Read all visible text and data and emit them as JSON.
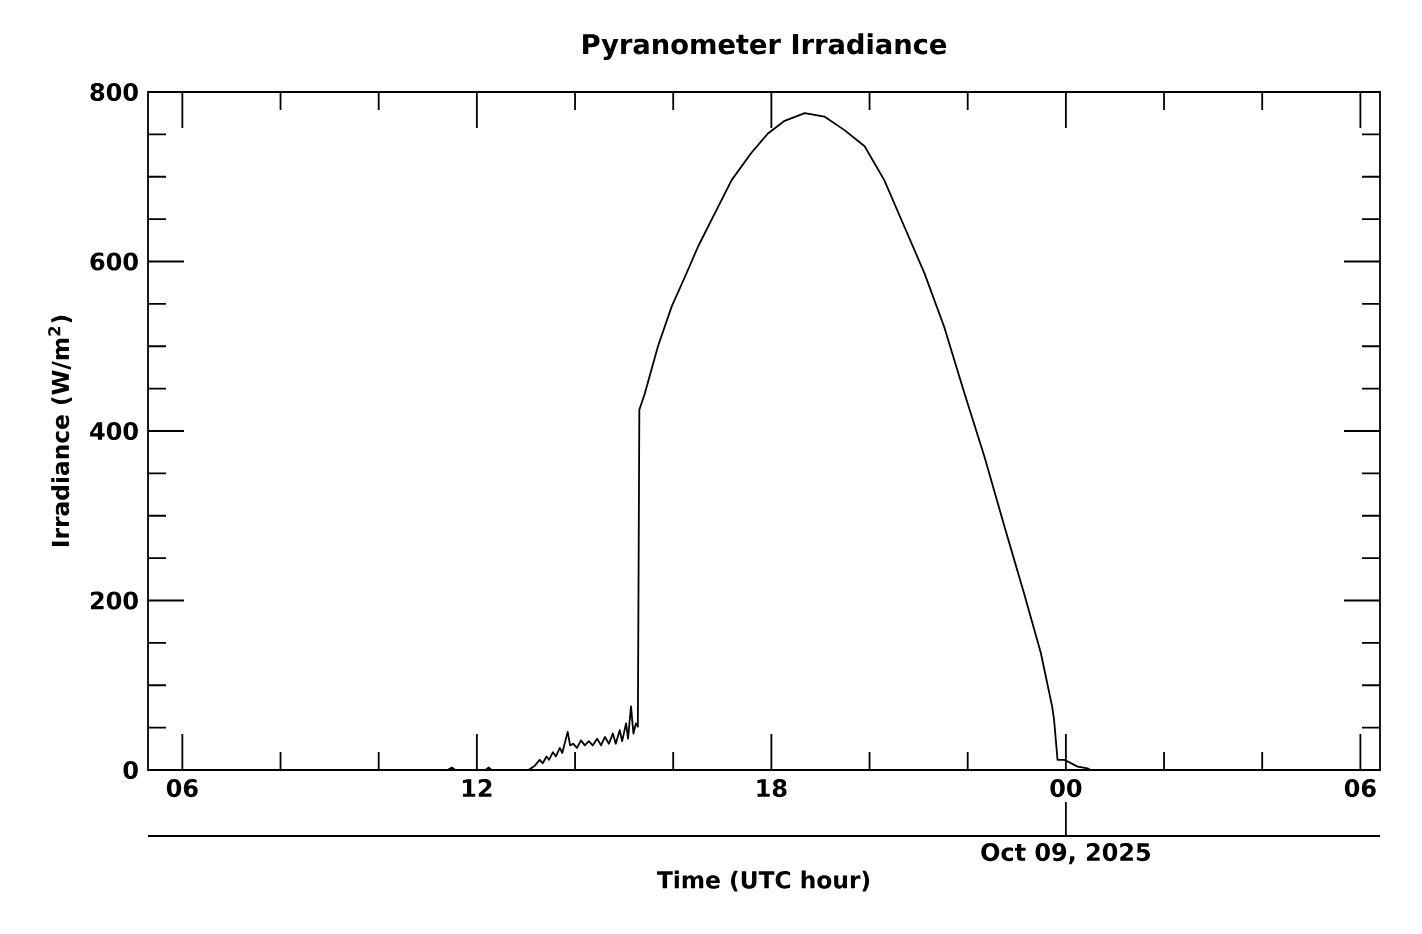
{
  "chart_data": {
    "type": "line",
    "title": "Pyranometer Irradiance",
    "xlabel": "Time (UTC hour)",
    "ylabel": "Irradiance (W/m$^{2}$)",
    "x": [
      5.3,
      11.4,
      11.49,
      11.56,
      12.18,
      12.24,
      12.3,
      13.05,
      13.18,
      13.28,
      13.34,
      13.42,
      13.47,
      13.55,
      13.61,
      13.69,
      13.74,
      13.85,
      13.9,
      13.96,
      14.04,
      14.12,
      14.2,
      14.28,
      14.36,
      14.45,
      14.53,
      14.61,
      14.69,
      14.77,
      14.83,
      14.91,
      14.96,
      15.04,
      15.08,
      15.14,
      15.19,
      15.24,
      15.28,
      15.31,
      15.42,
      15.69,
      15.97,
      16.24,
      16.51,
      16.85,
      17.19,
      17.59,
      17.93,
      18.27,
      18.68,
      19.08,
      19.49,
      19.9,
      20.3,
      20.71,
      21.12,
      21.52,
      21.93,
      22.34,
      22.75,
      23.15,
      23.49,
      23.72,
      23.76,
      23.83,
      23.97,
      24.24,
      24.44,
      24.5,
      30.4
    ],
    "values": [
      0,
      0,
      3,
      0,
      0,
      3,
      0,
      0,
      5,
      12,
      8,
      16,
      12,
      21,
      16,
      26,
      20,
      45,
      29,
      31,
      26,
      35,
      29,
      34,
      29,
      37,
      29,
      39,
      31,
      43,
      31,
      47,
      34,
      55,
      37,
      75,
      43,
      55,
      51,
      425,
      444,
      500,
      547,
      582,
      618,
      657,
      696,
      728,
      751,
      766,
      775,
      771,
      755,
      736,
      696,
      641,
      586,
      523,
      445,
      370,
      287,
      208,
      138,
      75,
      59,
      12,
      12,
      4,
      2,
      0,
      0
    ],
    "color": "#000000",
    "line_style": "solid",
    "xlim": [
      5.3,
      30.4
    ],
    "xticks": [
      {
        "value": 6,
        "label": "06"
      },
      {
        "value": 8,
        "label": null
      },
      {
        "value": 10,
        "label": null
      },
      {
        "value": 12,
        "label": "12"
      },
      {
        "value": 14,
        "label": null
      },
      {
        "value": 16,
        "label": null
      },
      {
        "value": 18,
        "label": "18"
      },
      {
        "value": 20,
        "label": null
      },
      {
        "value": 22,
        "label": null
      },
      {
        "value": 24,
        "label": "00"
      },
      {
        "value": 26,
        "label": null
      },
      {
        "value": 28,
        "label": null
      },
      {
        "value": 30,
        "label": "06"
      }
    ],
    "ylim": [
      0,
      800
    ],
    "yticks": [
      0,
      {
        "value": 50,
        "label": null
      },
      {
        "value": 100,
        "label": null
      },
      {
        "value": 150,
        "label": null
      },
      200,
      {
        "value": 250,
        "label": null
      },
      {
        "value": 300,
        "label": null
      },
      {
        "value": 350,
        "label": null
      },
      400,
      {
        "value": 450,
        "label": null
      },
      {
        "value": 500,
        "label": null
      },
      {
        "value": 550,
        "label": null
      },
      600,
      {
        "value": 650,
        "label": null
      },
      {
        "value": 700,
        "label": null
      },
      {
        "value": 750,
        "label": null
      },
      800
    ],
    "annotations": [
      {
        "text": "Oct 09, 2025",
        "x": 24
      }
    ]
  }
}
